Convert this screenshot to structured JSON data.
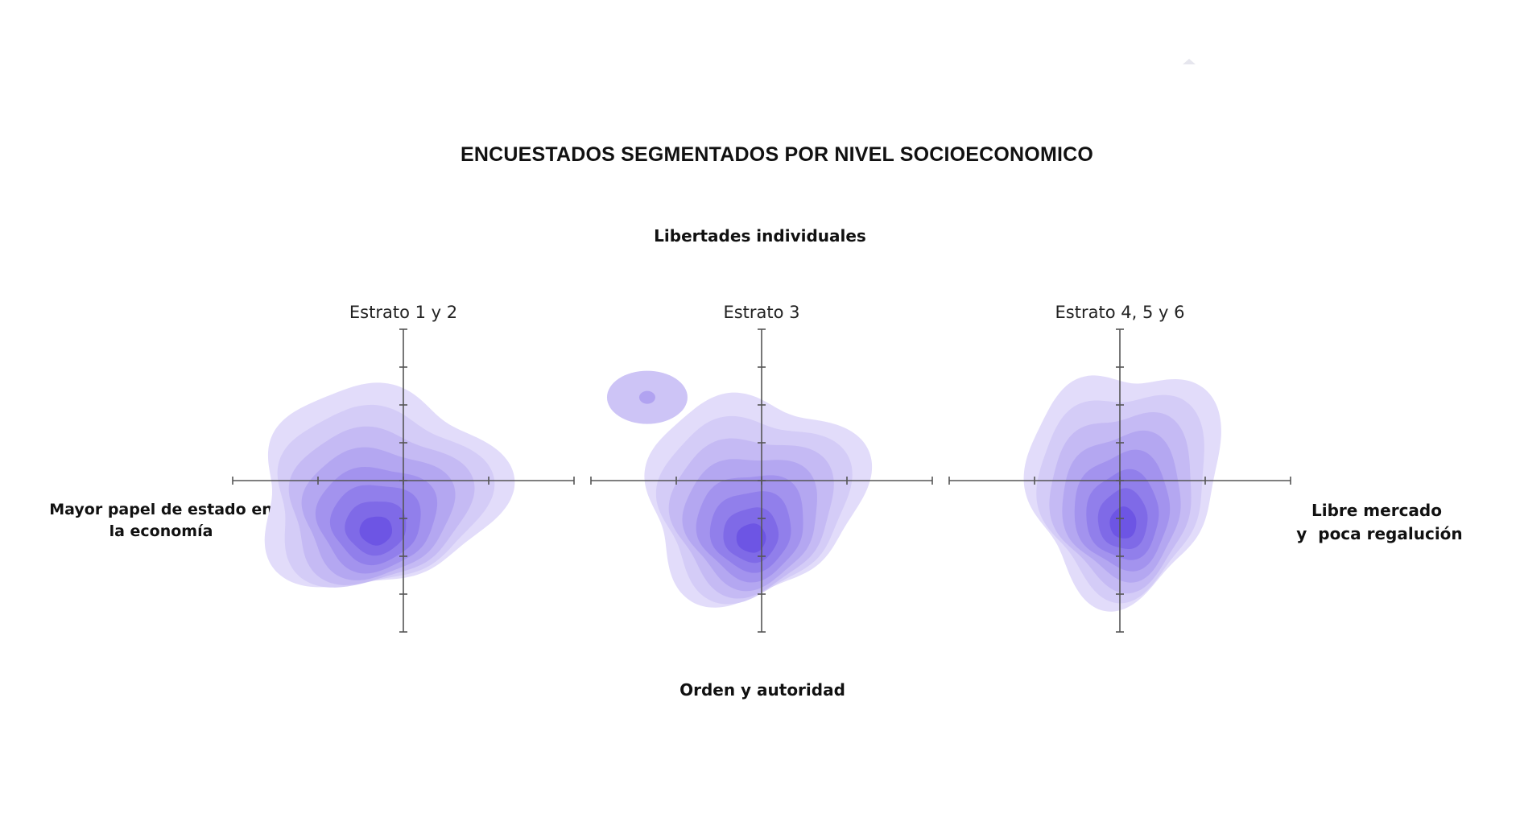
{
  "chart_data": {
    "type": "density_contour",
    "title": "ENCUESTADOS SEGMENTADOS POR NIVEL SOCIOECONOMICO",
    "axis_labels": {
      "top": "Libertades individuales",
      "bottom": "Orden y autoridad",
      "left": "Mayor papel de estado en la economía",
      "right": "Libre mercado\n y  poca regalución"
    },
    "xlim": [
      -1,
      1
    ],
    "ylim": [
      -1,
      1
    ],
    "x_ticks": [
      -1,
      -0.5,
      0,
      0.5,
      1
    ],
    "y_ticks": [
      -1,
      -0.75,
      -0.5,
      -0.25,
      0,
      0.25,
      0.5,
      0.75,
      1
    ],
    "levels": 8,
    "colors": {
      "lowest": "#e2dcfa",
      "highest": "#6d55e4",
      "axis": "#555555"
    },
    "panels": [
      {
        "title": "Estrato 1 y 2",
        "peak": {
          "x": -0.16,
          "y": -0.33
        },
        "spread": {
          "x": 0.55,
          "y": 0.5
        }
      },
      {
        "title": "Estrato 3",
        "peak": {
          "x": -0.06,
          "y": -0.38
        },
        "spread": {
          "x": 0.5,
          "y": 0.5
        },
        "secondary_peak": {
          "x": -0.67,
          "y": 0.55
        }
      },
      {
        "title": "Estrato 4, 5 y 6",
        "peak": {
          "x": 0.02,
          "y": -0.28
        },
        "spread": {
          "x": 0.45,
          "y": 0.55
        }
      }
    ]
  }
}
